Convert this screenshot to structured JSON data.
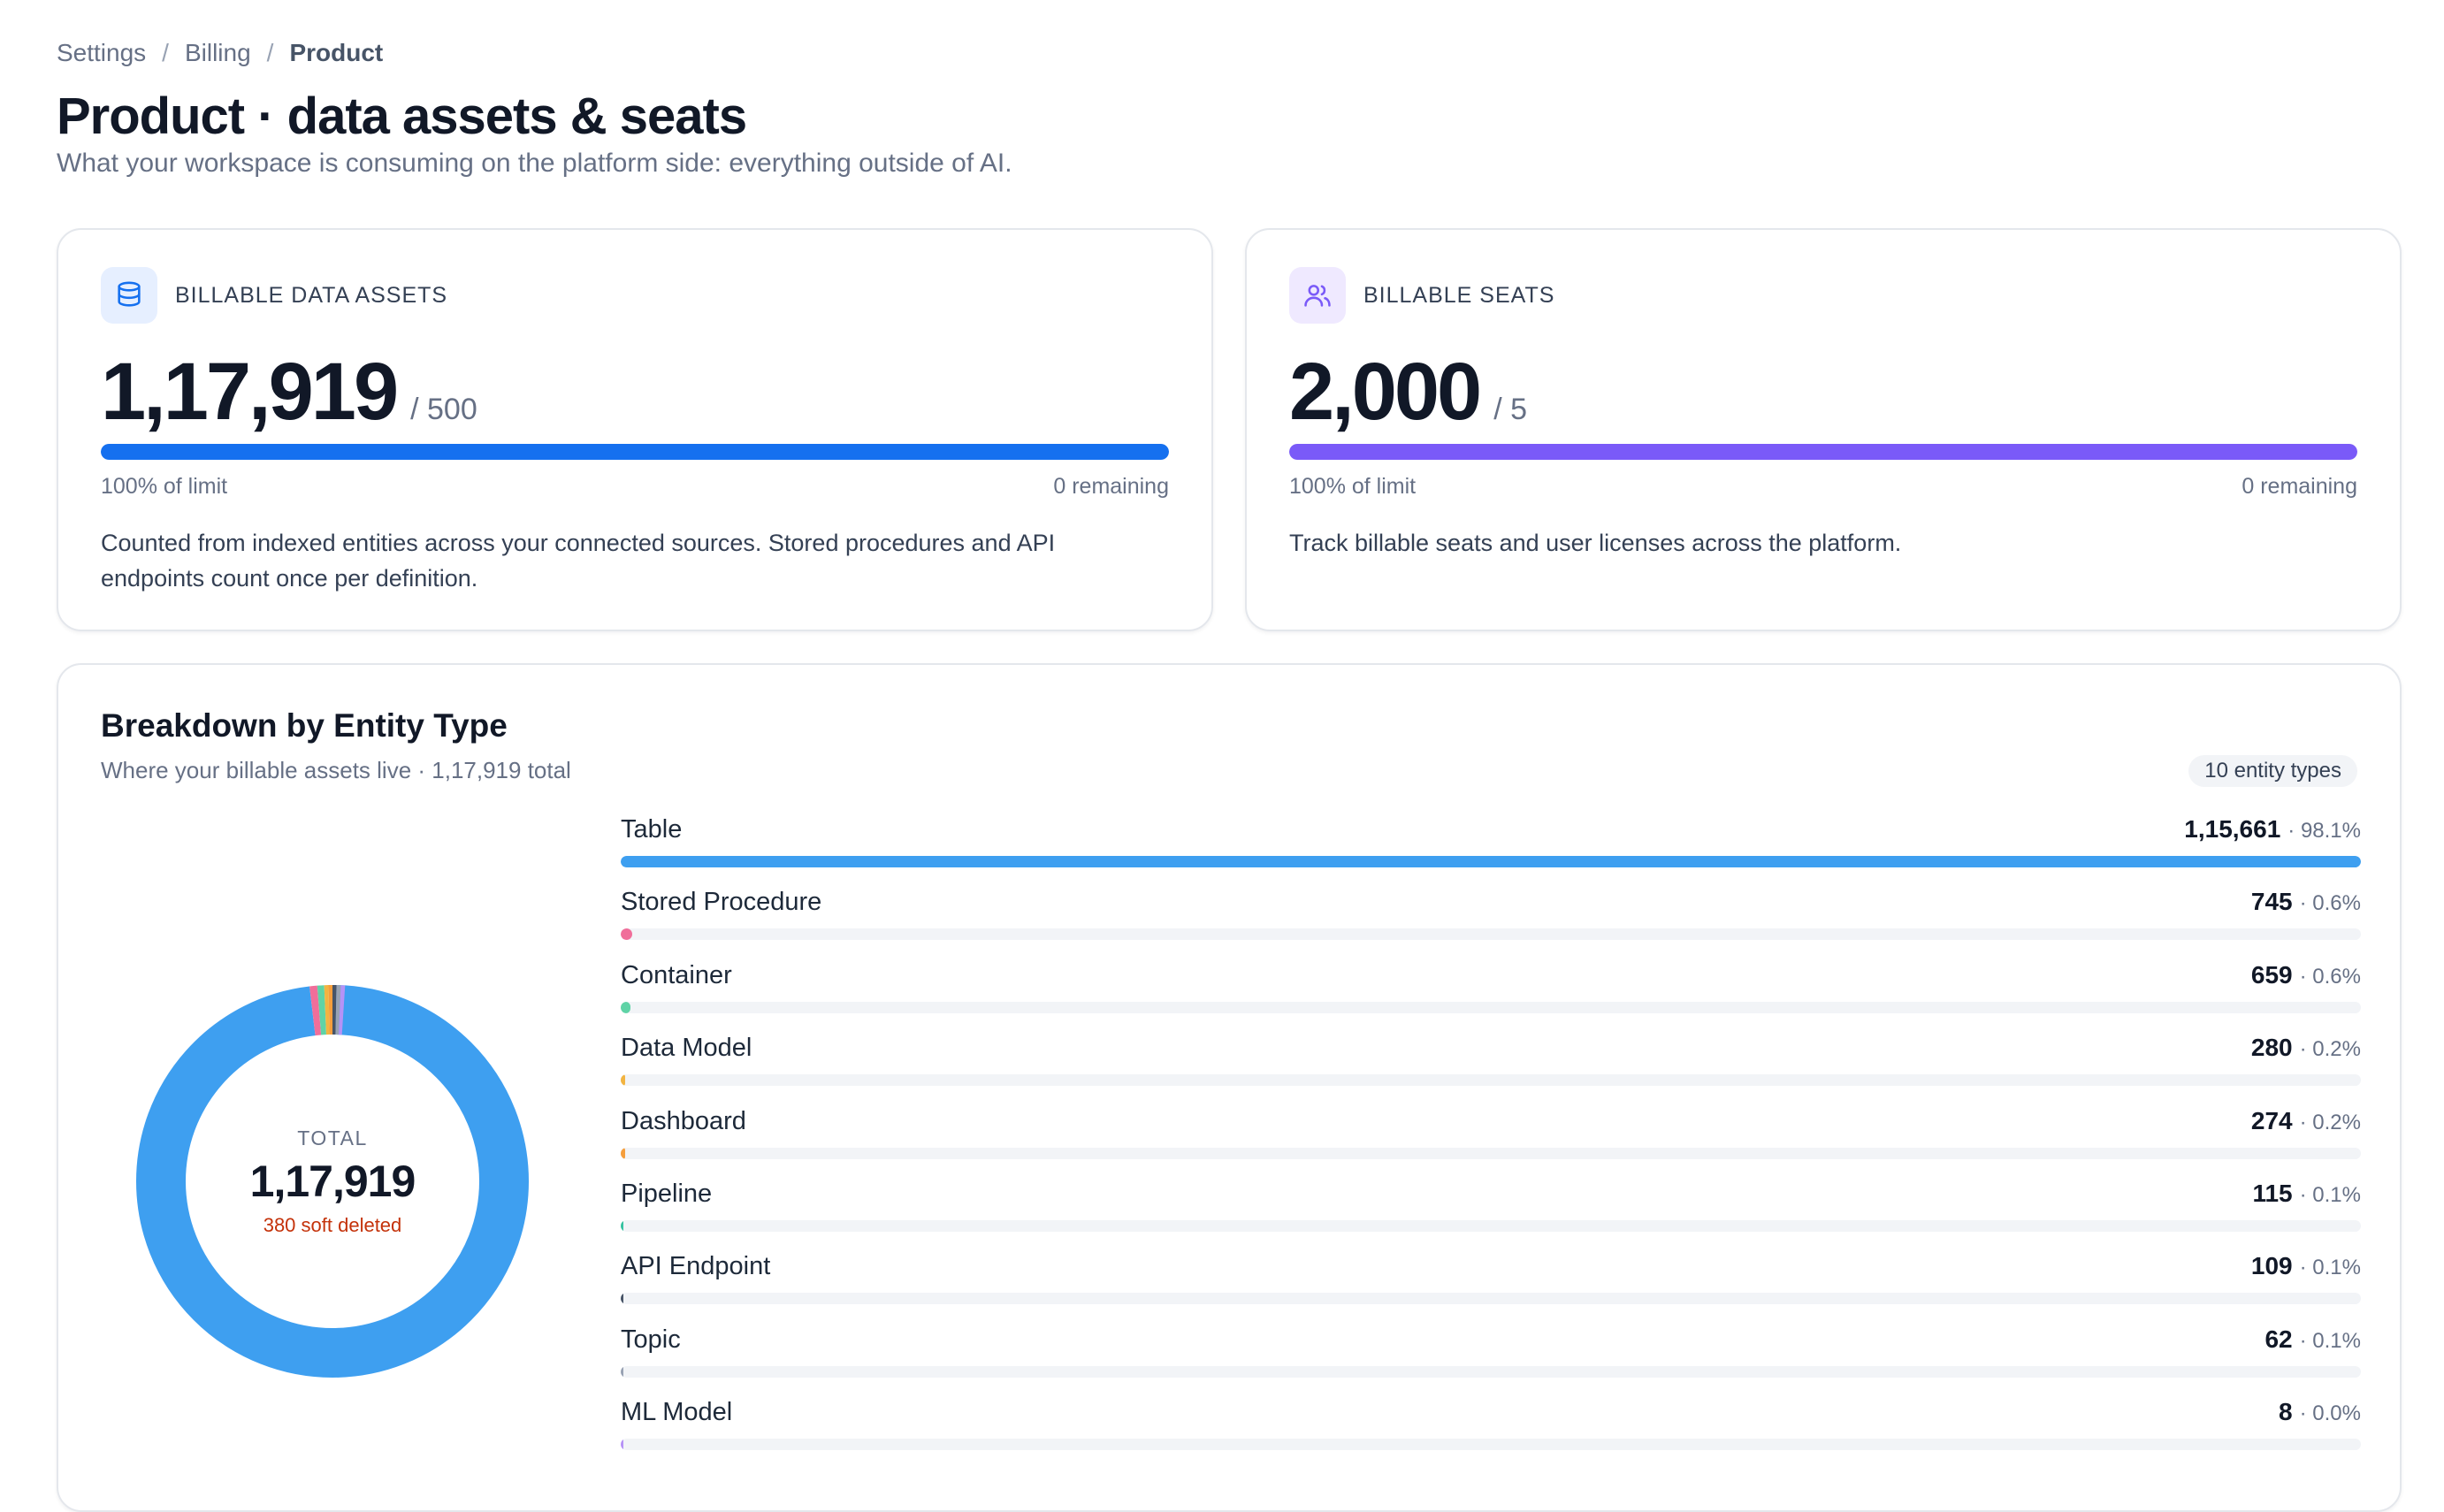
{
  "breadcrumb": {
    "items": [
      "Settings",
      "Billing"
    ],
    "current": "Product"
  },
  "page": {
    "title": "Product · data assets & seats",
    "subtitle": "What your workspace is consuming on the platform side: everything outside of AI."
  },
  "data_assets": {
    "icon": "database-icon",
    "label": "BILLABLE DATA ASSETS",
    "value": "1,17,919",
    "limit": "/ 500",
    "progress_fraction": 1.0,
    "percent_text": "100% of limit",
    "remaining_text": "0 remaining",
    "description": "Counted from indexed entities across your connected sources. Stored procedures and API endpoints count once per definition.",
    "accent": "#1570ef"
  },
  "seats": {
    "icon": "users-icon",
    "label": "BILLABLE SEATS",
    "value": "2,000",
    "limit": "/ 5",
    "progress_fraction": 1.0,
    "percent_text": "100% of limit",
    "remaining_text": "0 remaining",
    "description": "Track billable seats and user licenses across the platform.",
    "accent": "#7a5af8"
  },
  "breakdown": {
    "title": "Breakdown by Entity Type",
    "subtitle": "Where your billable assets live · 1,17,919 total",
    "pill": "10 entity types",
    "donut": {
      "label": "TOTAL",
      "value": "1,17,919",
      "note": "380 soft deleted"
    },
    "rows": [
      {
        "name": "Table",
        "count": "1,15,661",
        "pct": "· 98.1%",
        "value": 115661,
        "color": "#3e9ff0"
      },
      {
        "name": "Stored Procedure",
        "count": "745",
        "pct": "· 0.6%",
        "value": 745,
        "color": "#f06e9a"
      },
      {
        "name": "Container",
        "count": "659",
        "pct": "· 0.6%",
        "value": 659,
        "color": "#5fd3a6"
      },
      {
        "name": "Data Model",
        "count": "280",
        "pct": "· 0.2%",
        "value": 280,
        "color": "#f2b441"
      },
      {
        "name": "Dashboard",
        "count": "274",
        "pct": "· 0.2%",
        "value": 274,
        "color": "#f59e3c"
      },
      {
        "name": "Pipeline",
        "count": "115",
        "pct": "· 0.1%",
        "value": 115,
        "color": "#35c2a0"
      },
      {
        "name": "API Endpoint",
        "count": "109",
        "pct": "· 0.1%",
        "value": 109,
        "color": "#475467"
      },
      {
        "name": "Topic",
        "count": "62",
        "pct": "· 0.1%",
        "value": 62,
        "color": "#98a2b3"
      },
      {
        "name": "ML Model",
        "count": "8",
        "pct": "· 0.0%",
        "value": 8,
        "color": "#b692f6"
      }
    ]
  }
}
